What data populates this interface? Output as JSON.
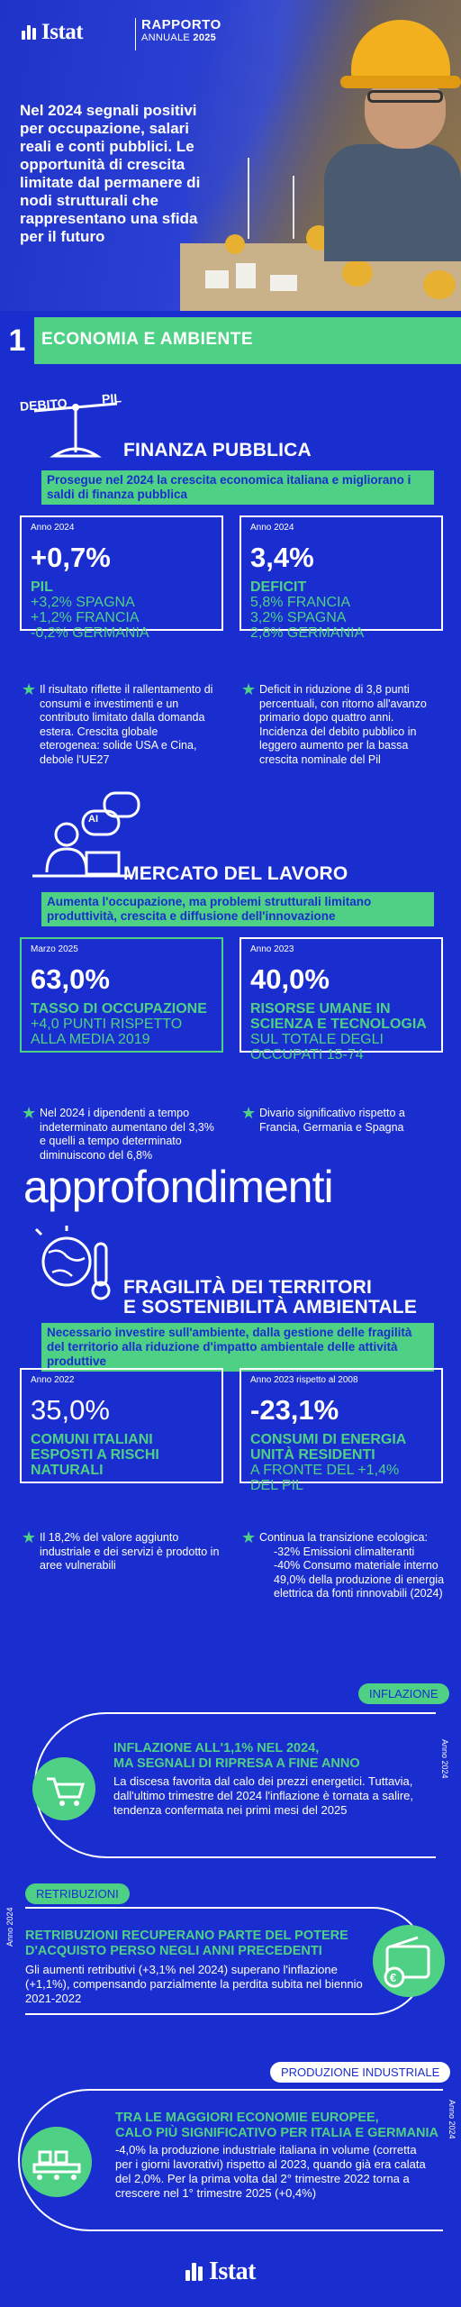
{
  "header": {
    "logo_text": "Istat",
    "report_title": "RAPPORTO",
    "report_sub_prefix": "ANNUALE",
    "report_year": "2025"
  },
  "hero": {
    "text": "Nel 2024 segnali positivi per occupazione, salari reali e conti pubblici. Le opportunità di crescita limitate dal permanere di nodi strutturali che rappresentano una sfida per il futuro"
  },
  "section": {
    "number": "1",
    "title": "ECONOMIA E AMBIENTE"
  },
  "finanza": {
    "scale_left": "DEBITO",
    "scale_right": "PIL",
    "title": "FINANZA PUBBLICA",
    "highlight": "Prosegue nel 2024 la crescita economica italiana e migliorano i saldi di finanza pubblica",
    "box1": {
      "period": "Anno 2024",
      "value": "+0,7%",
      "label": "PIL",
      "sub1": "+3,2% SPAGNA",
      "sub2": "+1,2% FRANCIA",
      "sub3": "-0,2% GERMANIA"
    },
    "box2": {
      "period": "Anno 2024",
      "value": "3,4%",
      "label": "DEFICIT",
      "sub1": "5,8% FRANCIA",
      "sub2": "3,2% SPAGNA",
      "sub3": "2,8% GERMANIA"
    },
    "note1": "Il risultato riflette il rallentamento di consumi e investimenti e un contributo limitato dalla domanda estera. Crescita globale eterogenea: solide USA e Cina, debole l'UE27",
    "note2": "Deficit in riduzione di 3,8 punti percentuali, con ritorno all'avanzo primario dopo quattro anni. Incidenza del debito pubblico in leggero aumento per la bassa crescita nominale del Pil"
  },
  "lavoro": {
    "icon_text": "AI",
    "title": "MERCATO DEL LAVORO",
    "highlight": "Aumenta l'occupazione, ma problemi strutturali limitano produttività, crescita e diffusione dell'innovazione",
    "box1": {
      "period": "Marzo 2025",
      "value": "63,0%",
      "label": "TASSO DI OCCUPAZIONE",
      "sub1": "+4,0 PUNTI RISPETTO",
      "sub2": "ALLA MEDIA 2019"
    },
    "box2": {
      "period": "Anno 2023",
      "value": "40,0%",
      "label1": "RISORSE UMANE IN",
      "label2": "SCIENZA E TECNOLOGIA",
      "sub1": "SUL TOTALE DEGLI",
      "sub2": "OCCUPATI 15-74"
    },
    "note1": "Nel 2024 i dipendenti a tempo indeterminato aumentano del 3,3% e quelli a tempo determinato diminuiscono del 6,8%",
    "note2": "Divario significativo rispetto a Francia, Germania e Spagna"
  },
  "territori": {
    "title_line1": "FRAGILITÀ DEI TERRITORI",
    "title_line2": "E SOSTENIBILITÀ AMBIENTALE",
    "highlight": "Necessario investire sull'ambiente, dalla gestione delle fragilità del territorio alla riduzione d'impatto ambientale delle attività produttive",
    "box1": {
      "period": "Anno 2022",
      "value": "35,0%",
      "label1": "COMUNI ITALIANI",
      "label2": "ESPOSTI A RISCHI",
      "label3": "NATURALI"
    },
    "box2": {
      "period": "Anno 2023 rispetto al 2008",
      "value": "-23,1%",
      "label1": "CONSUMI DI ENERGIA",
      "label2": "UNITÀ RESIDENTI",
      "sub1": "A FRONTE DEL +1,4%",
      "sub2": "DEL PIL"
    },
    "note1": "Il 18,2% del valore aggiunto industriale e dei servizi è prodotto in aree vulnerabili",
    "note2_l1": "Continua la transizione ecologica:",
    "note2_l2": "-32% Emissioni climalteranti",
    "note2_l3": "-40% Consumo materiale interno",
    "note2_l4": "49,0% della produzione di energia elettrica da fonti rinnovabili (2024)"
  },
  "approfondimenti": {
    "title": "approfondimenti",
    "card1": {
      "tag": "INFLAZIONE",
      "year": "Anno 2024",
      "title_l1": "INFLAZIONE ALL'1,1% NEL 2024,",
      "title_l2": "MA SEGNALI DI RIPRESA A FINE ANNO",
      "text": "La discesa favorita dal calo dei prezzi energetici. Tuttavia, dall'ultimo trimestre del 2024 l'inflazione è tornata a salire, tendenza confermata nei primi mesi del 2025"
    },
    "card2": {
      "tag": "RETRIBUZIONI",
      "year": "Anno 2024",
      "title_l1": "RETRIBUZIONI RECUPERANO PARTE DEL POTERE",
      "title_l2": "D'ACQUISTO PERSO NEGLI ANNI PRECEDENTI",
      "text": "Gli aumenti retributivi (+3,1% nel 2024) superano l'inflazione (+1,1%), compensando parzialmente la perdita subita nel biennio 2021-2022"
    },
    "card3": {
      "tag": "PRODUZIONE INDUSTRIALE",
      "year": "Anno 2024",
      "title_l1": "TRA LE MAGGIORI ECONOMIE EUROPEE,",
      "title_l2": "CALO PIÙ SIGNIFICATIVO PER ITALIA E GERMANIA",
      "text": "-4,0% la produzione industriale italiana in volume (corretta per i giorni lavorativi) rispetto al 2023, quando già era calata del 2,0%. Per la prima volta dal 2° trimestre 2022 torna a crescere nel 1° trimestre 2025 (+0,4%)"
    }
  },
  "footer": {
    "logo_text": "Istat"
  },
  "colors": {
    "background": "#1a2ed0",
    "accent": "#4fd185",
    "text": "#ffffff"
  }
}
